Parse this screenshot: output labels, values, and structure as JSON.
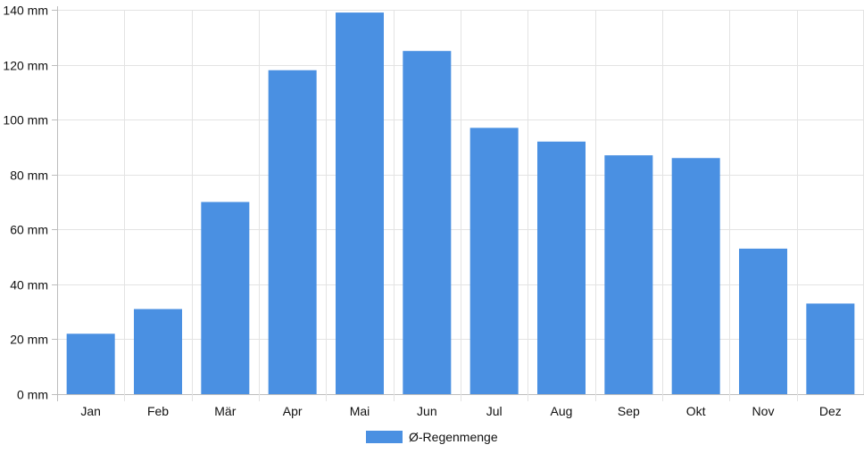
{
  "chart_data": {
    "type": "bar",
    "categories": [
      "Jan",
      "Feb",
      "Mär",
      "Apr",
      "Mai",
      "Jun",
      "Jul",
      "Aug",
      "Sep",
      "Okt",
      "Nov",
      "Dez"
    ],
    "series": [
      {
        "name": "Ø-Regenmenge",
        "values": [
          22,
          31,
          70,
          118,
          139,
          125,
          97,
          92,
          87,
          86,
          53,
          33
        ],
        "color": "#4a90e2"
      }
    ],
    "yticks": [
      "0 mm",
      "20 mm",
      "40 mm",
      "60 mm",
      "80 mm",
      "100 mm",
      "120 mm",
      "140 mm"
    ],
    "ylim": [
      0,
      140
    ],
    "ytick_step": 20,
    "grid": true,
    "legend": "bottom-center",
    "colors": {
      "grid": "#e3e3e3",
      "axis": "#bdbdbd",
      "text": "#111111"
    }
  }
}
